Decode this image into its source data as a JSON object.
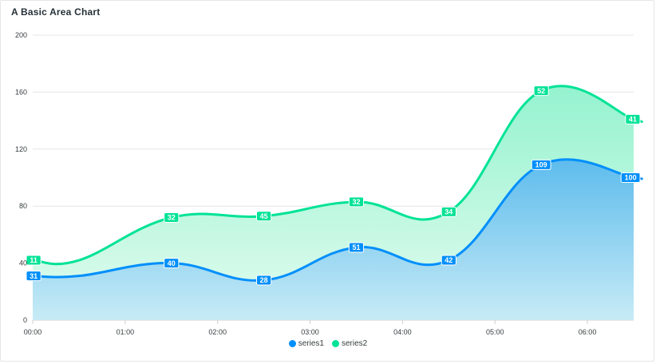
{
  "chart_data": {
    "type": "area",
    "title": "A Basic Area Chart",
    "x_tick_labels": [
      "00:00",
      "01:00",
      "02:00",
      "03:00",
      "04:00",
      "05:00",
      "06:00"
    ],
    "x": [
      0,
      1,
      2,
      3,
      4,
      5,
      6
    ],
    "y_ticks": [
      0,
      40,
      80,
      120,
      160,
      200
    ],
    "ylim": [
      0,
      200
    ],
    "xlim": [
      0,
      6.5
    ],
    "stacked": true,
    "grid": true,
    "legend_position": "bottom",
    "series": [
      {
        "name": "series1",
        "color": "#008FFB",
        "values": [
          31,
          40,
          28,
          51,
          42,
          109,
          100
        ]
      },
      {
        "name": "series2",
        "color": "#00E396",
        "values": [
          11,
          32,
          45,
          32,
          34,
          52,
          41
        ]
      }
    ]
  }
}
